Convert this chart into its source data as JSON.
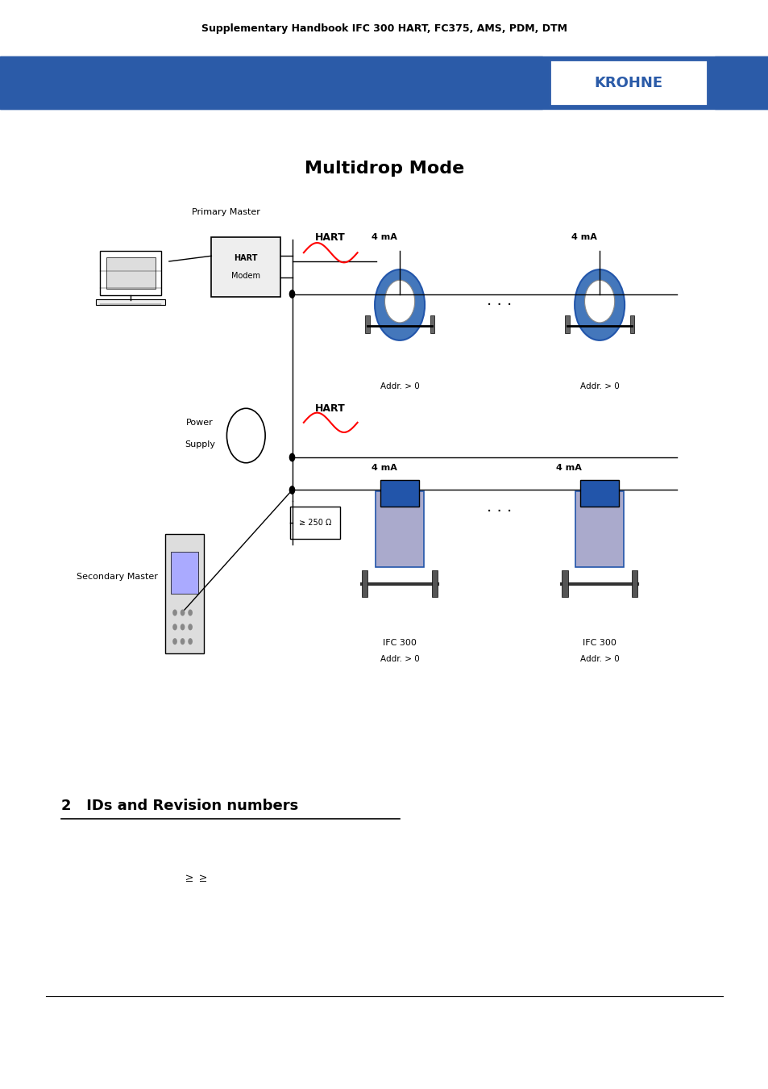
{
  "header_text": "Supplementary Handbook IFC 300 HART, FC375, AMS, PDM, DTM",
  "krohne_text": "KROHNE",
  "title": "Multidrop Mode",
  "section_title": "2   IDs and Revision numbers",
  "header_bar_color": "#2B5BA8",
  "krohne_box_color": "#2B5BA8",
  "background_color": "#FFFFFF"
}
